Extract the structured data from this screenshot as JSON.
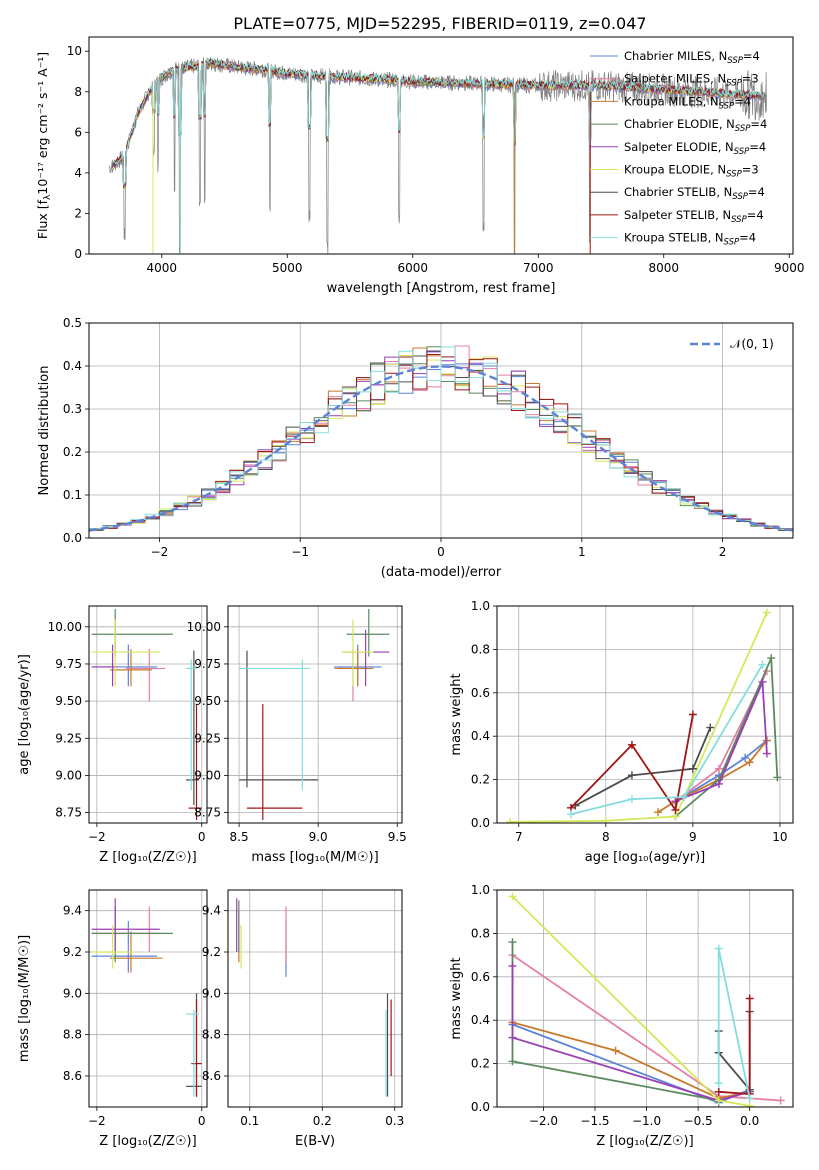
{
  "title": "PLATE=0775, MJD=52295, FIBERID=0119, z=0.047",
  "colors": [
    "#5b84d8",
    "#e57fa7",
    "#c8792d",
    "#5b8a5f",
    "#9a3fb5",
    "#d4e85a",
    "#4d4d4d",
    "#a01515",
    "#84dede"
  ],
  "legend_entries": [
    {
      "text": "Chabrier MILES, N",
      "sub": "SSP",
      "post": "=4"
    },
    {
      "text": "Salpeter MILES, N",
      "sub": "SSP",
      "post": "=3"
    },
    {
      "text": "Kroupa MILES, N",
      "sub": "SSP",
      "post": "=4"
    },
    {
      "text": "Chabrier ELODIE, N",
      "sub": "SSP",
      "post": "=4"
    },
    {
      "text": "Salpeter ELODIE, N",
      "sub": "SSP",
      "post": "=4"
    },
    {
      "text": "Kroupa ELODIE, N",
      "sub": "SSP",
      "post": "=3"
    },
    {
      "text": "Chabrier STELIB, N",
      "sub": "SSP",
      "post": "=4"
    },
    {
      "text": "Salpeter STELIB, N",
      "sub": "SSP",
      "post": "=4"
    },
    {
      "text": "Kroupa STELIB, N",
      "sub": "SSP",
      "post": "=4"
    }
  ],
  "chart_data": [
    {
      "id": "spectrum",
      "type": "line",
      "xlabel": "wavelength [Angstrom, rest frame]",
      "ylabel": "Flux [f",
      "ylabel_sub": "λ",
      "ylabel_post": "10⁻¹⁷ erg cm⁻² s⁻¹ A⁻¹]",
      "xlim": [
        3420,
        9030
      ],
      "ylim": [
        0,
        10.7
      ],
      "xticks": [
        4000,
        5000,
        6000,
        7000,
        8000,
        9000
      ],
      "yticks": [
        0,
        2,
        4,
        6,
        8,
        10
      ],
      "continuum": [
        [
          3600,
          4.3
        ],
        [
          3700,
          4.8
        ],
        [
          3800,
          6.8
        ],
        [
          3900,
          8.0
        ],
        [
          4000,
          8.7
        ],
        [
          4100,
          9.1
        ],
        [
          4200,
          9.2
        ],
        [
          4400,
          9.4
        ],
        [
          4600,
          9.2
        ],
        [
          4800,
          9.1
        ],
        [
          5000,
          8.9
        ],
        [
          5200,
          8.8
        ],
        [
          5500,
          8.7
        ],
        [
          6000,
          8.5
        ],
        [
          6500,
          8.4
        ],
        [
          7000,
          8.3
        ],
        [
          7500,
          8.3
        ],
        [
          8000,
          8.1
        ],
        [
          8500,
          7.9
        ],
        [
          8800,
          7.8
        ]
      ],
      "absorption_lines": [
        [
          3705,
          0.5
        ],
        [
          3935,
          4.8
        ],
        [
          3970,
          4.0
        ],
        [
          4102,
          2.5
        ],
        [
          4143,
          0
        ],
        [
          4304,
          2.0
        ],
        [
          4342,
          2.2
        ],
        [
          4862,
          1.5
        ],
        [
          5175,
          1.5
        ],
        [
          5320,
          0
        ],
        [
          5892,
          1.4
        ],
        [
          6563,
          1.0
        ],
        [
          6810,
          0
        ],
        [
          7410,
          0
        ]
      ]
    },
    {
      "id": "residuals",
      "type": "histogram",
      "xlabel": "(data-model)/error",
      "ylabel": "Normed distribution",
      "xlim": [
        -2.5,
        2.5
      ],
      "ylim": [
        0,
        0.5
      ],
      "xticks": [
        -2,
        -1,
        0,
        1,
        2
      ],
      "yticks": [
        0,
        0.1,
        0.2,
        0.3,
        0.4,
        0.5
      ],
      "bin_width": 0.1,
      "legend": "𝒩(0, 1)",
      "reference_curve": "normal(0,1)"
    },
    {
      "id": "age-vs-Z",
      "type": "errorbar",
      "xlabel": "Z [log₁₀(Z/Z☉)]",
      "ylabel": "age  [log₁₀(age/yr)]",
      "xlim": [
        -2.15,
        0.1
      ],
      "ylim": [
        8.68,
        10.14
      ],
      "xticks": [
        -2,
        0
      ],
      "yticks": [
        8.75,
        9.0,
        9.25,
        9.5,
        9.75,
        10.0
      ],
      "points": [
        {
          "c": 0,
          "x": -1.4,
          "xl": -2.1,
          "xh": -0.85,
          "y": 9.73,
          "yl": 9.6,
          "yh": 9.88
        },
        {
          "c": 1,
          "x": -1.0,
          "xl": -1.45,
          "xh": -0.7,
          "y": 9.72,
          "yl": 9.5,
          "yh": 9.85
        },
        {
          "c": 2,
          "x": -1.35,
          "xl": -1.75,
          "xh": -0.95,
          "y": 9.71,
          "yl": 9.6,
          "yh": 9.85
        },
        {
          "c": 3,
          "x": -1.65,
          "xl": -2.1,
          "xh": -0.55,
          "y": 9.95,
          "yl": 9.8,
          "yh": 10.12
        },
        {
          "c": 4,
          "x": -1.7,
          "xl": -2.1,
          "xh": -1.6,
          "y": 9.73,
          "yl": 9.6,
          "yh": 9.88
        },
        {
          "c": 5,
          "x": -1.65,
          "xl": -2.1,
          "xh": -0.8,
          "y": 9.83,
          "yl": 9.6,
          "yh": 10.05
        },
        {
          "c": 6,
          "x": -0.15,
          "xl": -0.3,
          "xh": -0.05,
          "y": 8.97,
          "yl": 8.8,
          "yh": 9.84
        },
        {
          "c": 7,
          "x": -0.1,
          "xl": -0.25,
          "xh": 0.0,
          "y": 8.78,
          "yl": 8.7,
          "yh": 9.48
        },
        {
          "c": 8,
          "x": -0.2,
          "xl": -0.3,
          "xh": -0.1,
          "y": 9.72,
          "yl": 8.9,
          "yh": 9.78
        }
      ]
    },
    {
      "id": "age-vs-mass",
      "type": "errorbar",
      "xlabel": "mass [log₁₀(M/M☉)]",
      "ylabel": "",
      "xlim": [
        8.43,
        9.53
      ],
      "ylim": [
        8.68,
        10.14
      ],
      "xticks": [
        8.5,
        9.0,
        9.5
      ],
      "yticks": [
        8.75,
        9.0,
        9.25,
        9.5,
        9.75,
        10.0
      ],
      "points": [
        {
          "c": 0,
          "x": 9.25,
          "xl": 9.1,
          "xh": 9.4,
          "y": 9.73,
          "yl": 9.6,
          "yh": 9.88
        },
        {
          "c": 1,
          "x": 9.22,
          "xl": 9.1,
          "xh": 9.3,
          "y": 9.72,
          "yl": 9.5,
          "yh": 9.85
        },
        {
          "c": 2,
          "x": 9.25,
          "xl": 9.12,
          "xh": 9.35,
          "y": 9.72,
          "yl": 9.6,
          "yh": 9.85
        },
        {
          "c": 3,
          "x": 9.32,
          "xl": 9.18,
          "xh": 9.45,
          "y": 9.95,
          "yl": 9.8,
          "yh": 10.12
        },
        {
          "c": 4,
          "x": 9.3,
          "xl": 9.15,
          "xh": 9.45,
          "y": 9.83,
          "yl": 9.6,
          "yh": 9.98
        },
        {
          "c": 5,
          "x": 9.22,
          "xl": 9.15,
          "xh": 9.35,
          "y": 9.83,
          "yl": 9.6,
          "yh": 10.05
        },
        {
          "c": 6,
          "x": 8.55,
          "xl": 8.5,
          "xh": 9.0,
          "y": 8.97,
          "yl": 8.92,
          "yh": 9.84
        },
        {
          "c": 7,
          "x": 8.65,
          "xl": 8.55,
          "xh": 8.9,
          "y": 8.78,
          "yl": 8.7,
          "yh": 9.48
        },
        {
          "c": 8,
          "x": 8.9,
          "xl": 8.5,
          "xh": 8.95,
          "y": 9.72,
          "yl": 8.9,
          "yh": 9.78
        }
      ]
    },
    {
      "id": "weight-vs-age",
      "type": "line",
      "xlabel": "age  [log₁₀(age/yr)]",
      "ylabel": "mass weight",
      "xlim": [
        6.75,
        10.15
      ],
      "ylim": [
        0,
        1.0
      ],
      "xticks": [
        7,
        8,
        9,
        10
      ],
      "yticks": [
        0,
        0.2,
        0.4,
        0.6,
        0.8,
        1.0
      ],
      "series": [
        {
          "c": 0,
          "x": [
            8.8,
            9.3,
            9.6,
            9.85
          ],
          "y": [
            0.1,
            0.22,
            0.3,
            0.38
          ]
        },
        {
          "c": 1,
          "x": [
            8.8,
            9.3,
            9.85
          ],
          "y": [
            0.1,
            0.25,
            0.7
          ]
        },
        {
          "c": 2,
          "x": [
            8.6,
            8.8,
            9.3,
            9.65,
            9.85
          ],
          "y": [
            0.05,
            0.1,
            0.2,
            0.28,
            0.38
          ]
        },
        {
          "c": 3,
          "x": [
            8.8,
            9.3,
            9.9,
            9.97
          ],
          "y": [
            0.03,
            0.2,
            0.76,
            0.21
          ]
        },
        {
          "c": 4,
          "x": [
            8.8,
            9.3,
            9.8,
            9.85
          ],
          "y": [
            0.1,
            0.18,
            0.65,
            0.32
          ]
        },
        {
          "c": 5,
          "x": [
            6.9,
            8.0,
            8.8,
            9.85
          ],
          "y": [
            0.005,
            0.01,
            0.03,
            0.97
          ]
        },
        {
          "c": 6,
          "x": [
            7.65,
            8.3,
            9.0,
            9.2
          ],
          "y": [
            0.08,
            0.22,
            0.25,
            0.44
          ]
        },
        {
          "c": 7,
          "x": [
            7.6,
            8.3,
            8.8,
            9.0
          ],
          "y": [
            0.07,
            0.36,
            0.06,
            0.5
          ]
        },
        {
          "c": 8,
          "x": [
            7.6,
            8.3,
            8.9,
            9.8
          ],
          "y": [
            0.04,
            0.11,
            0.12,
            0.73
          ]
        }
      ]
    },
    {
      "id": "mass-vs-Z",
      "type": "errorbar",
      "xlabel": "Z [log₁₀(Z/Z☉)]",
      "ylabel": "mass [log₁₀(M/M☉)]",
      "xlim": [
        -2.15,
        0.1
      ],
      "ylim": [
        8.45,
        9.5
      ],
      "xticks": [
        -2,
        0
      ],
      "yticks": [
        8.6,
        8.8,
        9.0,
        9.2,
        9.4
      ],
      "points": [
        {
          "c": 0,
          "x": -1.4,
          "xl": -2.1,
          "xh": -0.85,
          "y": 9.18,
          "yl": 9.1,
          "yh": 9.35
        },
        {
          "c": 1,
          "x": -1.0,
          "xl": -2.1,
          "xh": -0.75,
          "y": 9.29,
          "yl": 9.2,
          "yh": 9.42
        },
        {
          "c": 2,
          "x": -1.35,
          "xl": -1.75,
          "xh": -0.75,
          "y": 9.17,
          "yl": 9.1,
          "yh": 9.3
        },
        {
          "c": 3,
          "x": -1.65,
          "xl": -2.1,
          "xh": -0.55,
          "y": 9.29,
          "yl": 9.15,
          "yh": 9.42
        },
        {
          "c": 4,
          "x": -1.65,
          "xl": -2.1,
          "xh": -0.8,
          "y": 9.31,
          "yl": 9.2,
          "yh": 9.46
        },
        {
          "c": 5,
          "x": -1.7,
          "xl": -2.1,
          "xh": -1.3,
          "y": 9.2,
          "yl": 9.12,
          "yh": 9.33
        },
        {
          "c": 6,
          "x": -0.1,
          "xl": -0.3,
          "xh": 0.0,
          "y": 8.55,
          "yl": 8.5,
          "yh": 9.0
        },
        {
          "c": 7,
          "x": -0.1,
          "xl": -0.2,
          "xh": 0.0,
          "y": 8.66,
          "yl": 8.5,
          "yh": 8.97
        },
        {
          "c": 8,
          "x": -0.15,
          "xl": -0.3,
          "xh": -0.05,
          "y": 8.9,
          "yl": 8.5,
          "yh": 8.92
        }
      ]
    },
    {
      "id": "mass-vs-EBV",
      "type": "errorbar",
      "xlabel": "E(B-V)",
      "ylabel": "",
      "xlim": [
        0.07,
        0.31
      ],
      "ylim": [
        8.45,
        9.5
      ],
      "xticks": [
        0.1,
        0.2,
        0.3
      ],
      "yticks": [
        8.6,
        8.8,
        9.0,
        9.2,
        9.4
      ],
      "points": [
        {
          "c": 0,
          "x": 0.15,
          "xl": 0.15,
          "xh": 0.15,
          "y": 9.18,
          "yl": 9.08,
          "yh": 9.35
        },
        {
          "c": 1,
          "x": 0.15,
          "xl": 0.15,
          "xh": 0.15,
          "y": 9.29,
          "yl": 9.15,
          "yh": 9.42
        },
        {
          "c": 2,
          "x": 0.085,
          "xl": 0.085,
          "xh": 0.085,
          "y": 9.2,
          "yl": 9.15,
          "yh": 9.4
        },
        {
          "c": 3,
          "x": 0.085,
          "xl": 0.085,
          "xh": 0.085,
          "y": 9.28,
          "yl": 9.2,
          "yh": 9.45
        },
        {
          "c": 4,
          "x": 0.082,
          "xl": 0.082,
          "xh": 0.082,
          "y": 9.31,
          "yl": 9.2,
          "yh": 9.46
        },
        {
          "c": 5,
          "x": 0.088,
          "xl": 0.088,
          "xh": 0.088,
          "y": 9.2,
          "yl": 9.12,
          "yh": 9.33
        },
        {
          "c": 6,
          "x": 0.29,
          "xl": 0.29,
          "xh": 0.29,
          "y": 8.55,
          "yl": 8.5,
          "yh": 9.0
        },
        {
          "c": 7,
          "x": 0.295,
          "xl": 0.295,
          "xh": 0.295,
          "y": 8.66,
          "yl": 8.6,
          "yh": 8.97
        },
        {
          "c": 8,
          "x": 0.288,
          "xl": 0.288,
          "xh": 0.288,
          "y": 8.7,
          "yl": 8.5,
          "yh": 8.92
        }
      ]
    },
    {
      "id": "weight-vs-Z",
      "type": "line",
      "xlabel": "Z [log₁₀(Z/Z☉)]",
      "ylabel": "mass weight",
      "xlim": [
        -2.45,
        0.42
      ],
      "ylim": [
        0,
        1.0
      ],
      "xticks": [
        -2.0,
        -1.5,
        -1.0,
        -0.5,
        0.0
      ],
      "yticks": [
        0,
        0.2,
        0.4,
        0.6,
        0.8,
        1.0
      ],
      "series": [
        {
          "c": 0,
          "x": [
            -2.3,
            -0.3,
            0.0
          ],
          "y": [
            0.38,
            0.02,
            0.08
          ]
        },
        {
          "c": 1,
          "x": [
            -2.3,
            -0.3,
            0.3
          ],
          "y": [
            0.7,
            0.05,
            0.03
          ]
        },
        {
          "c": 2,
          "x": [
            -2.3,
            -1.3,
            -0.3,
            0.0
          ],
          "y": [
            0.39,
            0.26,
            0.04,
            0.07
          ]
        },
        {
          "c": 3,
          "x": [
            -2.3,
            -2.3,
            -0.3
          ],
          "y": [
            0.76,
            0.21,
            0.03
          ]
        },
        {
          "c": 4,
          "x": [
            -2.3,
            -2.3,
            -0.3,
            0.0
          ],
          "y": [
            0.65,
            0.32,
            0.03,
            0.07
          ]
        },
        {
          "c": 5,
          "x": [
            -2.3,
            -0.3,
            0.0
          ],
          "y": [
            0.97,
            0.03,
            0.005
          ]
        },
        {
          "c": 6,
          "x": [
            -0.3,
            -0.3,
            0.0,
            0.0
          ],
          "y": [
            0.35,
            0.25,
            0.08,
            0.44
          ]
        },
        {
          "c": 7,
          "x": [
            -0.3,
            0.0,
            0.0
          ],
          "y": [
            0.07,
            0.06,
            0.5
          ]
        },
        {
          "c": 8,
          "x": [
            -0.3,
            -0.3,
            0.0
          ],
          "y": [
            0.11,
            0.73,
            0.04
          ]
        }
      ]
    }
  ]
}
